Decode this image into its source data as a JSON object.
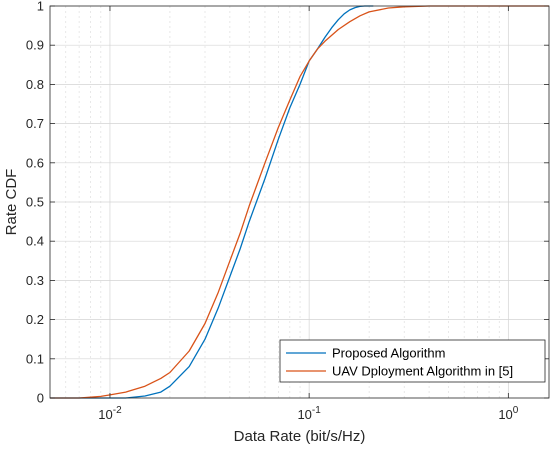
{
  "chart_data": {
    "type": "line",
    "title": "",
    "xlabel": "Data Rate (bit/s/Hz)",
    "ylabel": "Rate CDF",
    "xscale": "log",
    "xlim": [
      0.005,
      1.6
    ],
    "ylim": [
      0,
      1
    ],
    "x_ticks": [
      {
        "value": 0.01,
        "base": "10",
        "exp": "-2"
      },
      {
        "value": 0.1,
        "base": "10",
        "exp": "-1"
      },
      {
        "value": 1,
        "base": "10",
        "exp": "0"
      }
    ],
    "y_ticks": [
      {
        "value": 0,
        "label": "0"
      },
      {
        "value": 0.1,
        "label": "0.1"
      },
      {
        "value": 0.2,
        "label": "0.2"
      },
      {
        "value": 0.3,
        "label": "0.3"
      },
      {
        "value": 0.4,
        "label": "0.4"
      },
      {
        "value": 0.5,
        "label": "0.5"
      },
      {
        "value": 0.6,
        "label": "0.6"
      },
      {
        "value": 0.7,
        "label": "0.7"
      },
      {
        "value": 0.8,
        "label": "0.8"
      },
      {
        "value": 0.9,
        "label": "0.9"
      },
      {
        "value": 1,
        "label": "1"
      }
    ],
    "grid": true,
    "legend_position": "bottom-right",
    "series": [
      {
        "name": "Proposed Algorithm",
        "color": "#0072BD",
        "x": [
          0.005,
          0.01,
          0.012,
          0.015,
          0.018,
          0.02,
          0.025,
          0.03,
          0.035,
          0.04,
          0.045,
          0.05,
          0.06,
          0.07,
          0.08,
          0.09,
          0.1,
          0.11,
          0.12,
          0.13,
          0.14,
          0.15,
          0.16,
          0.17,
          0.18,
          0.19,
          0.2,
          0.21
        ],
        "y": [
          0,
          0,
          0,
          0.005,
          0.015,
          0.03,
          0.08,
          0.15,
          0.23,
          0.31,
          0.38,
          0.45,
          0.56,
          0.66,
          0.74,
          0.8,
          0.86,
          0.89,
          0.92,
          0.945,
          0.965,
          0.98,
          0.99,
          0.996,
          0.999,
          1,
          1,
          1
        ]
      },
      {
        "name": "UAV Dployment Algorithm in [5]",
        "color": "#D95319",
        "x": [
          0.005,
          0.007,
          0.008,
          0.009,
          0.01,
          0.012,
          0.015,
          0.018,
          0.02,
          0.025,
          0.03,
          0.035,
          0.04,
          0.045,
          0.05,
          0.06,
          0.07,
          0.08,
          0.09,
          0.1,
          0.11,
          0.12,
          0.14,
          0.16,
          0.18,
          0.2,
          0.25,
          0.3,
          0.4,
          0.5,
          0.7,
          1,
          1.6
        ],
        "y": [
          0,
          0,
          0.002,
          0.004,
          0.008,
          0.015,
          0.03,
          0.05,
          0.065,
          0.12,
          0.19,
          0.27,
          0.35,
          0.42,
          0.49,
          0.6,
          0.69,
          0.76,
          0.82,
          0.86,
          0.89,
          0.91,
          0.94,
          0.96,
          0.975,
          0.985,
          0.995,
          0.998,
          1,
          1,
          1,
          1,
          1
        ]
      }
    ]
  }
}
